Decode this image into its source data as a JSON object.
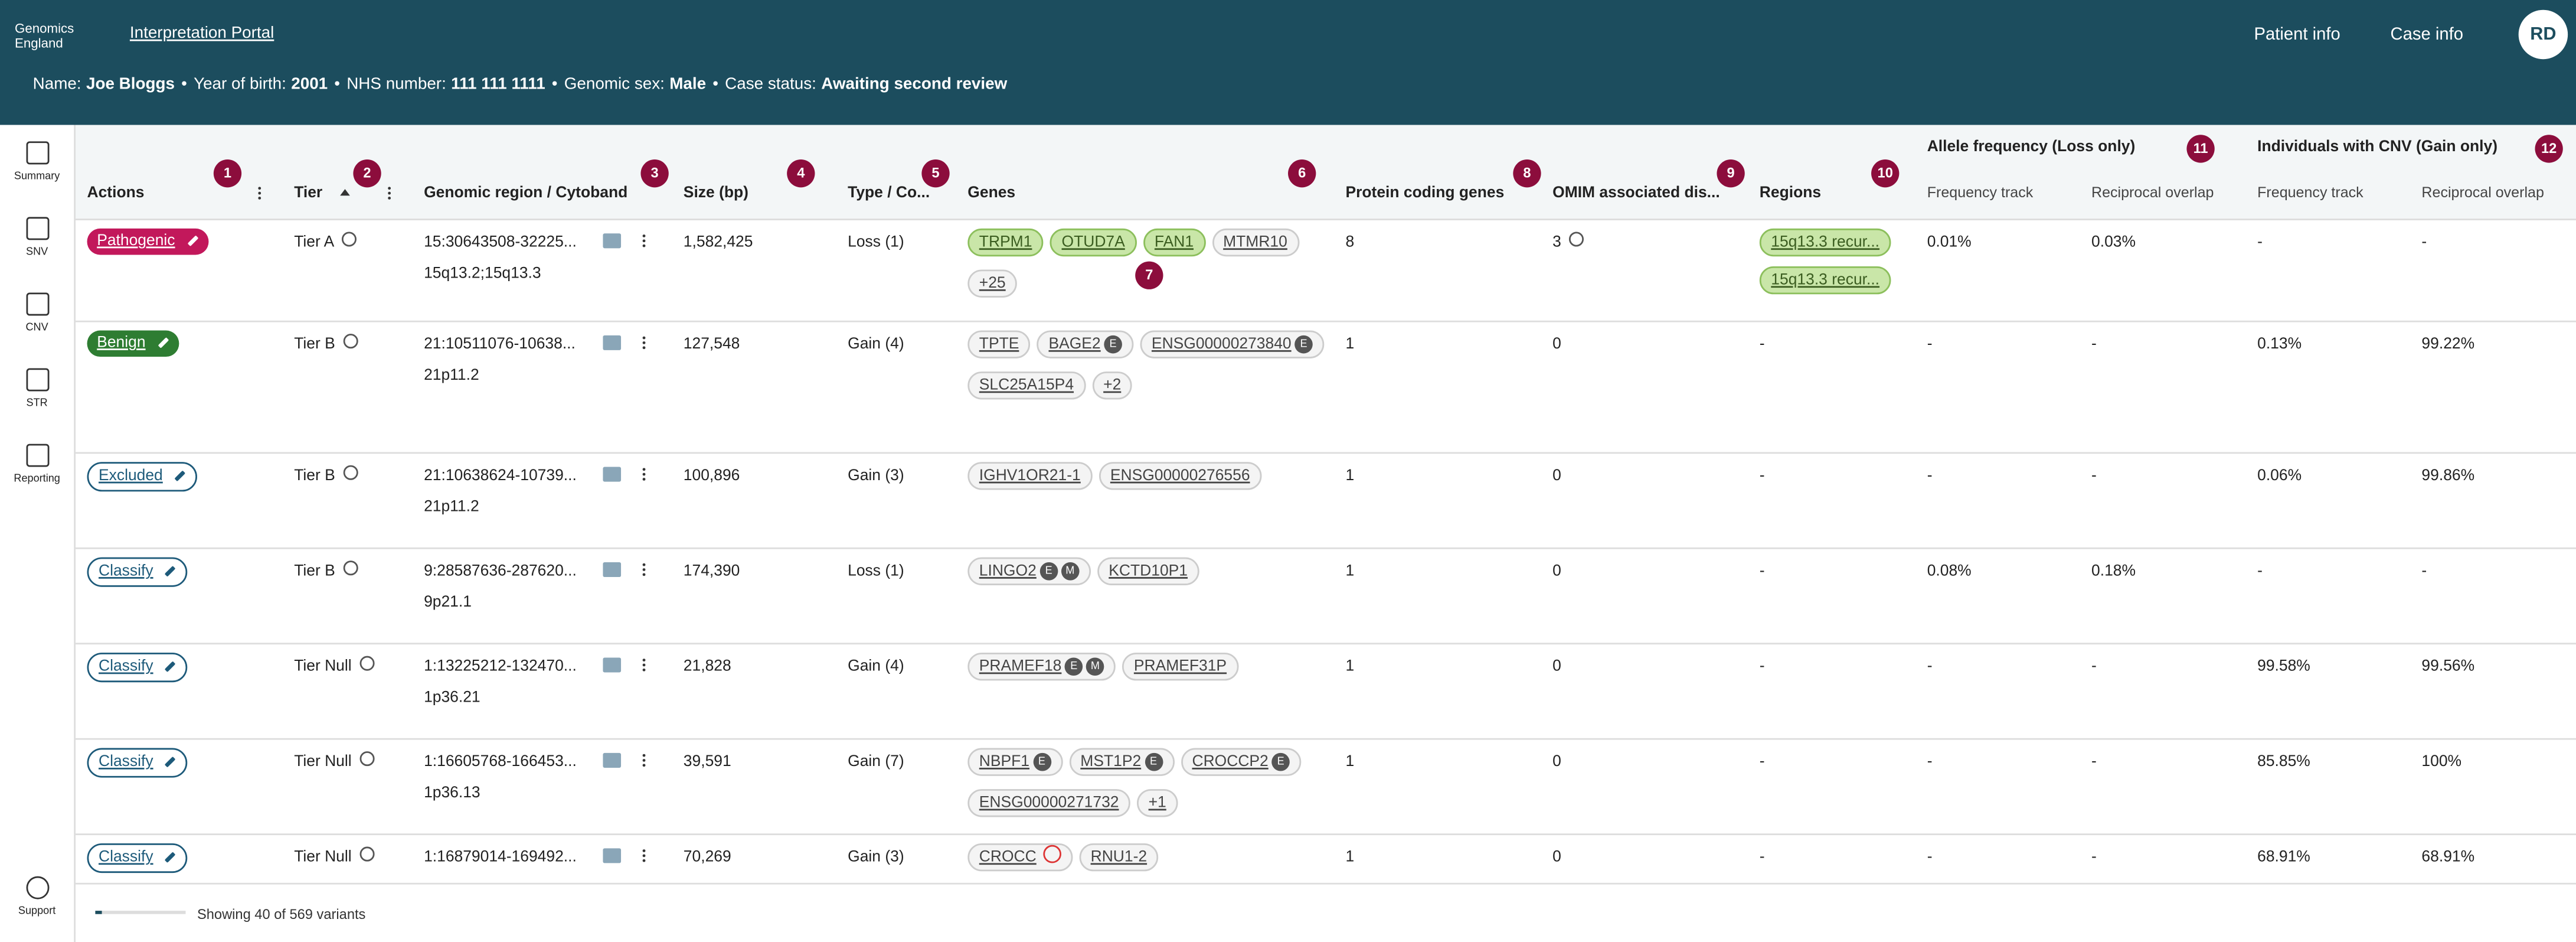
{
  "header": {
    "logo": "Genomics England",
    "portal_link": "Interpretation Portal",
    "menus": [
      "Patient info",
      "Case info"
    ],
    "avatar": "RD"
  },
  "patient": {
    "separator": "•",
    "fields": [
      {
        "label": "Name:",
        "value": "Joe Bloggs"
      },
      {
        "label": "Year of birth:",
        "value": "2001"
      },
      {
        "label": "NHS number:",
        "value": "111 111 1111"
      },
      {
        "label": "Genomic sex:",
        "value": "Male"
      },
      {
        "label": "Case status:",
        "value": "Awaiting second review"
      }
    ]
  },
  "sidebar": [
    "Summary",
    "SNV",
    "CNV",
    "STR",
    "Reporting",
    "Support"
  ],
  "group_headers": [
    "Allele frequency (Loss only)",
    "Individuals with CNV (Gain only)"
  ],
  "columns": [
    "Actions",
    "Tier",
    "Genomic region / Cytoband",
    "Size (bp)",
    "Type / Co...",
    "Genes",
    "Protein coding genes",
    "OMIM associated dis...",
    "Regions",
    "Frequency track",
    "Reciprocal overlap",
    "Frequency track",
    "Reciprocal overlap"
  ],
  "markers": [
    "1",
    "2",
    "3",
    "4",
    "5",
    "6",
    "7",
    "8",
    "9",
    "10",
    "11",
    "12"
  ],
  "rows": [
    {
      "action": "Pathogenic",
      "action_color": "#c2185b",
      "action_filled": true,
      "tier": "Tier A",
      "region": "15:30643508-32225...",
      "cytoband": "15q13.2;15q13.3",
      "size": "1,582,425",
      "type": "Loss (1)",
      "genes": [
        {
          "name": "TRPM1",
          "green": true
        },
        {
          "name": "OTUD7A",
          "green": true
        },
        {
          "name": "FAN1",
          "green": true
        },
        {
          "name": "MTMR10"
        },
        {
          "name": "+25"
        }
      ],
      "protein": "8",
      "omim": "3",
      "regions": [
        "15q13.3 recur...",
        "15q13.3 recur..."
      ],
      "af_freq": "0.01%",
      "af_overlap": "0.03%",
      "ind_freq": "-",
      "ind_overlap": "-"
    },
    {
      "action": "Benign",
      "action_color": "#2e7d32",
      "action_filled": true,
      "tier": "Tier B",
      "region": "21:10511076-10638...",
      "cytoband": "21p11.2",
      "size": "127,548",
      "type": "Gain (4)",
      "genes": [
        {
          "name": "TPTE"
        },
        {
          "name": "BAGE2",
          "tags": [
            "E"
          ]
        },
        {
          "name": "ENSG00000273840",
          "tags": [
            "E"
          ]
        },
        {
          "name": "SLC25A15P4"
        },
        {
          "name": "+2"
        }
      ],
      "protein": "1",
      "omim": "0",
      "regions": "-",
      "af_freq": "-",
      "af_overlap": "-",
      "ind_freq": "0.13%",
      "ind_overlap": "99.22%"
    },
    {
      "action": "Excluded",
      "action_color": "#1d5a7a",
      "tier": "Tier B",
      "region": "21:10638624-10739...",
      "cytoband": "21p11.2",
      "size": "100,896",
      "type": "Gain (3)",
      "genes": [
        {
          "name": "IGHV1OR21-1"
        },
        {
          "name": "ENSG00000276556"
        }
      ],
      "protein": "1",
      "omim": "0",
      "regions": "-",
      "af_freq": "-",
      "af_overlap": "-",
      "ind_freq": "0.06%",
      "ind_overlap": "99.86%"
    },
    {
      "action": "Classify",
      "action_color": "#1d5a7a",
      "tier": "Tier B",
      "region": "9:28587636-287620...",
      "cytoband": "9p21.1",
      "size": "174,390",
      "type": "Loss (1)",
      "genes": [
        {
          "name": "LINGO2",
          "tags": [
            "E",
            "M"
          ]
        },
        {
          "name": "KCTD10P1"
        }
      ],
      "protein": "1",
      "omim": "0",
      "regions": "-",
      "af_freq": "0.08%",
      "af_overlap": "0.18%",
      "ind_freq": "-",
      "ind_overlap": "-"
    },
    {
      "action": "Classify",
      "action_color": "#1d5a7a",
      "tier": "Tier Null",
      "region": "1:13225212-132470...",
      "cytoband": "1p36.21",
      "size": "21,828",
      "type": "Gain (4)",
      "genes": [
        {
          "name": "PRAMEF18",
          "tags": [
            "E",
            "M"
          ]
        },
        {
          "name": "PRAMEF31P"
        }
      ],
      "protein": "1",
      "omim": "0",
      "regions": "-",
      "af_freq": "-",
      "af_overlap": "-",
      "ind_freq": "99.58%",
      "ind_overlap": "99.56%"
    },
    {
      "action": "Classify",
      "action_color": "#1d5a7a",
      "tier": "Tier Null",
      "region": "1:16605768-166453...",
      "cytoband": "1p36.13",
      "size": "39,591",
      "type": "Gain (7)",
      "genes": [
        {
          "name": "NBPF1",
          "tags": [
            "E"
          ]
        },
        {
          "name": "MST1P2",
          "tags": [
            "E"
          ]
        },
        {
          "name": "CROCCP2",
          "tags": [
            "E"
          ]
        },
        {
          "name": "ENSG00000271732"
        },
        {
          "name": "+1"
        }
      ],
      "protein": "1",
      "omim": "0",
      "regions": "-",
      "af_freq": "-",
      "af_overlap": "-",
      "ind_freq": "85.85%",
      "ind_overlap": "100%"
    },
    {
      "action": "Classify",
      "action_color": "#1d5a7a",
      "tier": "Tier Null",
      "region": "1:16879014-169492...",
      "size": "70,269",
      "type": "Gain (3)",
      "genes": [
        {
          "name": "CROCC",
          "warning": true
        },
        {
          "name": "RNU1-2"
        }
      ],
      "protein": "1",
      "omim": "0",
      "regions": "-",
      "af_freq": "-",
      "af_overlap": "-",
      "ind_freq": "68.91%",
      "ind_overlap": "68.91%"
    }
  ],
  "footer": "Showing 40 of 569 variants"
}
